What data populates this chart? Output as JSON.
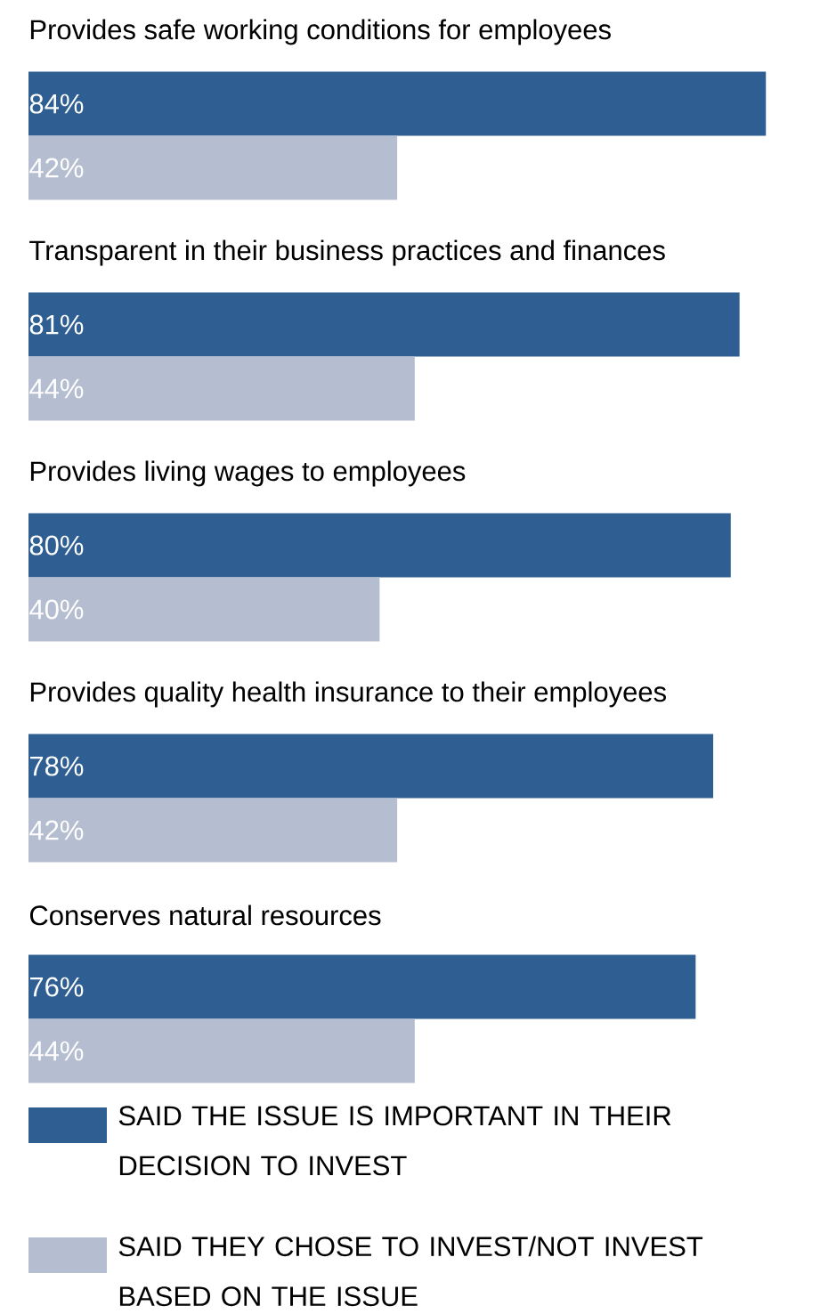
{
  "chart_data": {
    "type": "bar",
    "orientation": "horizontal",
    "legend": "bottom",
    "categories": [
      "Provides safe working conditions for employees",
      "Transparent in their business practices and finances",
      "Provides living wages to employees",
      "Provides quality health insurance to their employees",
      "Conserves natural resources"
    ],
    "series": [
      {
        "name": "SAID THE ISSUE IS IMPORTANT IN THEIR DECISION TO INVEST",
        "color": "#2e5e92",
        "values": [
          84,
          81,
          80,
          78,
          76
        ],
        "value_labels": [
          "84%",
          "81%",
          "80%",
          "78%",
          "76%"
        ]
      },
      {
        "name": "SAID THEY CHOSE TO INVEST/NOT INVEST BASED ON THE ISSUE",
        "color": "#b5bdd0",
        "values": [
          42,
          44,
          40,
          42,
          44
        ],
        "value_labels": [
          "42%",
          "44%",
          "40%",
          "42%",
          "44%"
        ]
      }
    ]
  }
}
